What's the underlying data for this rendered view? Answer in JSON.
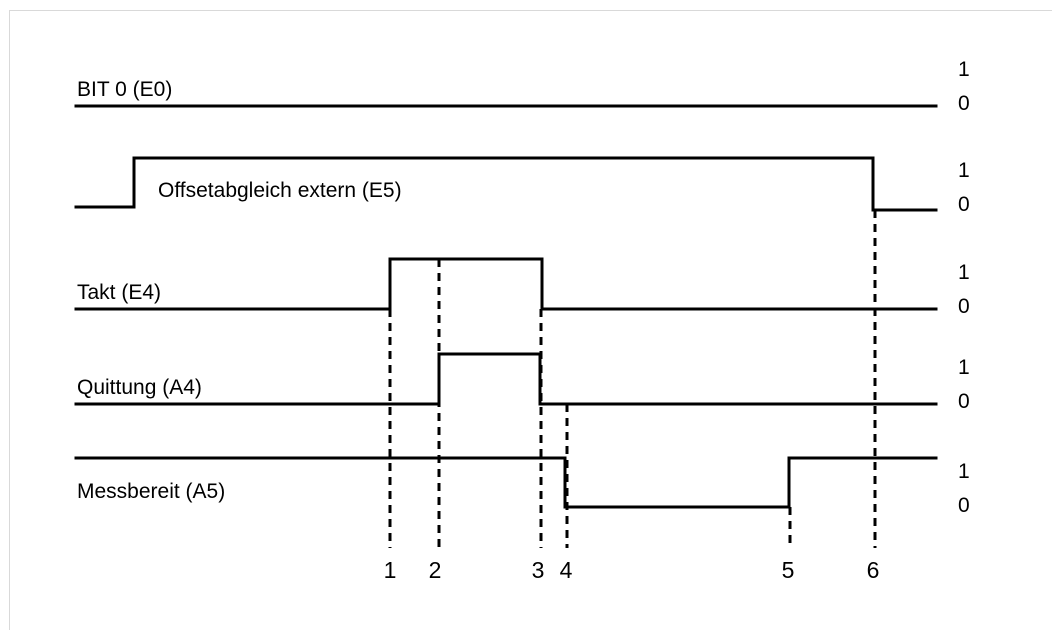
{
  "signals": [
    {
      "label": "BIT 0 (E0)",
      "high": "1",
      "low": "0"
    },
    {
      "label": "Offsetabgleich extern (E5)",
      "high": "1",
      "low": "0"
    },
    {
      "label": "Takt (E4)",
      "high": "1",
      "low": "0"
    },
    {
      "label": "Quittung (A4)",
      "high": "1",
      "low": "0"
    },
    {
      "label": "Messbereit (A5)",
      "high": "1",
      "low": "0"
    }
  ],
  "markers": [
    "1",
    "2",
    "3",
    "4",
    "5",
    "6"
  ]
}
